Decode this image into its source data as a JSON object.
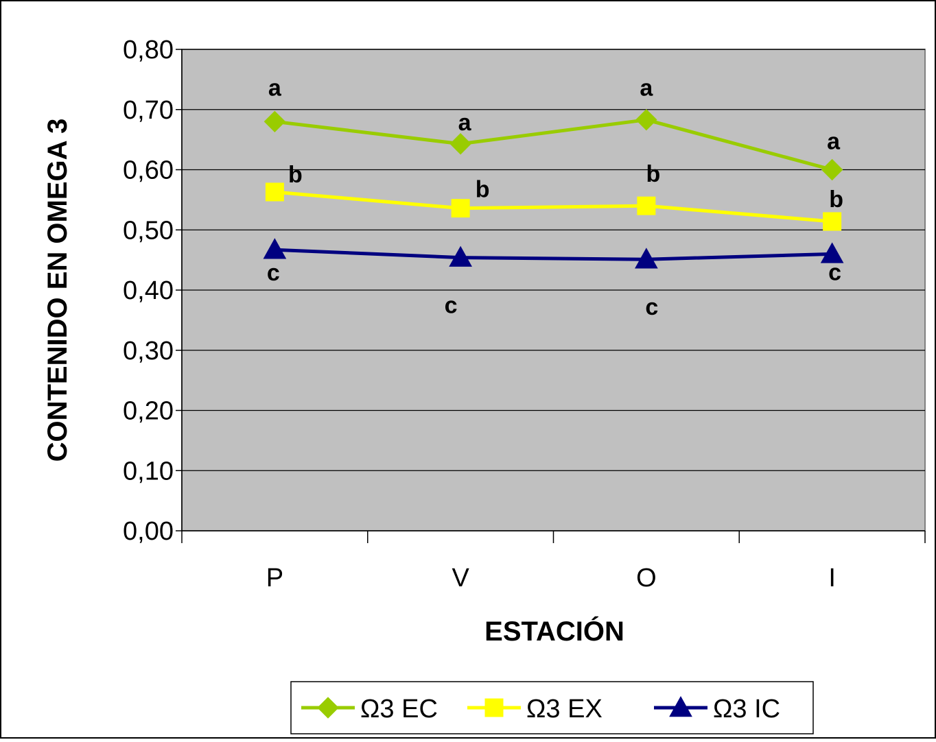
{
  "chart_data": {
    "type": "line",
    "xlabel": "ESTACIÓN",
    "ylabel": "CONTENIDO EN OMEGA 3",
    "categories": [
      "P",
      "V",
      "O",
      "I"
    ],
    "ylim": [
      0,
      0.8
    ],
    "yticks": [
      "0,00",
      "0,10",
      "0,20",
      "0,30",
      "0,40",
      "0,50",
      "0,60",
      "0,70",
      "0,80"
    ],
    "ytick_values": [
      0,
      0.1,
      0.2,
      0.3,
      0.4,
      0.5,
      0.6,
      0.7,
      0.8
    ],
    "grid": true,
    "plot_background": "#C0C0C0",
    "legend_position": "bottom",
    "series": [
      {
        "name": "Ω3 EC",
        "color": "#99CC00",
        "marker": "diamond",
        "values": [
          0.68,
          0.643,
          0.683,
          0.6
        ],
        "labels": [
          "a",
          "a",
          "a",
          "a"
        ]
      },
      {
        "name": "Ω3 EX",
        "color": "#FFFF00",
        "marker": "square",
        "values": [
          0.563,
          0.536,
          0.54,
          0.514
        ],
        "labels": [
          "b",
          "b",
          "b",
          "b"
        ]
      },
      {
        "name": "Ω3 IC",
        "color": "#000080",
        "marker": "triangle",
        "values": [
          0.467,
          0.454,
          0.451,
          0.46
        ],
        "labels": [
          "c",
          "c",
          "c",
          "c"
        ]
      }
    ]
  }
}
